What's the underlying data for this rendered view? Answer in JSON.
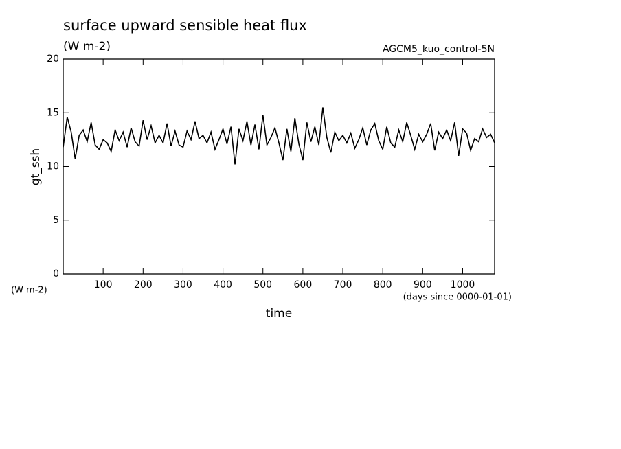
{
  "chart_data": {
    "type": "line",
    "title": "surface upward sensible heat flux",
    "subtitle": "(W m-2)",
    "annotation": "AGCM5_kuo_control-5N",
    "ylabel": "gt_ssh",
    "yunit": "(W m-2)",
    "xlabel": "time",
    "xunit": "(days since 0000-01-01)",
    "xlim": [
      0,
      1080
    ],
    "ylim": [
      0,
      20
    ],
    "xticks": [
      100,
      200,
      300,
      400,
      500,
      600,
      700,
      800,
      900,
      1000
    ],
    "yticks": [
      0,
      5,
      10,
      15,
      20
    ],
    "grid": false,
    "series": [
      {
        "color": "#000000",
        "x": [
          0,
          10,
          20,
          30,
          40,
          50,
          60,
          70,
          80,
          90,
          100,
          110,
          120,
          130,
          140,
          150,
          160,
          170,
          180,
          190,
          200,
          210,
          220,
          230,
          240,
          250,
          260,
          270,
          280,
          290,
          300,
          310,
          320,
          330,
          340,
          350,
          360,
          370,
          380,
          390,
          400,
          410,
          420,
          430,
          440,
          450,
          460,
          470,
          480,
          490,
          500,
          510,
          520,
          530,
          540,
          550,
          560,
          570,
          580,
          590,
          600,
          610,
          620,
          630,
          640,
          650,
          660,
          670,
          680,
          690,
          700,
          710,
          720,
          730,
          740,
          750,
          760,
          770,
          780,
          790,
          800,
          810,
          820,
          830,
          840,
          850,
          860,
          870,
          880,
          890,
          900,
          910,
          920,
          930,
          940,
          950,
          960,
          970,
          980,
          990,
          1000,
          1010,
          1020,
          1030,
          1040,
          1050,
          1060,
          1070,
          1080
        ],
        "values": [
          11.8,
          14.6,
          13.2,
          10.7,
          12.9,
          13.4,
          12.3,
          14.1,
          12.0,
          11.6,
          12.5,
          12.2,
          11.4,
          13.4,
          12.4,
          13.2,
          11.8,
          13.6,
          12.3,
          11.9,
          14.3,
          12.5,
          13.8,
          12.2,
          12.9,
          12.2,
          14.0,
          11.9,
          13.3,
          12.0,
          11.8,
          13.3,
          12.5,
          14.2,
          12.6,
          12.9,
          12.2,
          13.2,
          11.6,
          12.5,
          13.5,
          12.1,
          13.7,
          10.2,
          13.5,
          12.4,
          14.2,
          12.0,
          13.9,
          11.6,
          14.8,
          12.0,
          12.7,
          13.6,
          12.2,
          10.6,
          13.5,
          11.4,
          14.5,
          12.1,
          10.6,
          14.1,
          12.3,
          13.7,
          12.0,
          15.5,
          12.7,
          11.3,
          13.2,
          12.4,
          12.9,
          12.2,
          13.1,
          11.7,
          12.5,
          13.6,
          12.0,
          13.4,
          14.0,
          12.4,
          11.6,
          13.7,
          12.2,
          11.8,
          13.4,
          12.3,
          14.1,
          12.9,
          11.6,
          13.0,
          12.3,
          13.0,
          14.0,
          11.5,
          13.2,
          12.6,
          13.4,
          12.4,
          14.1,
          11.0,
          13.5,
          13.1,
          11.5,
          12.6,
          12.3,
          13.5,
          12.7,
          13.0,
          12.2
        ]
      }
    ]
  }
}
